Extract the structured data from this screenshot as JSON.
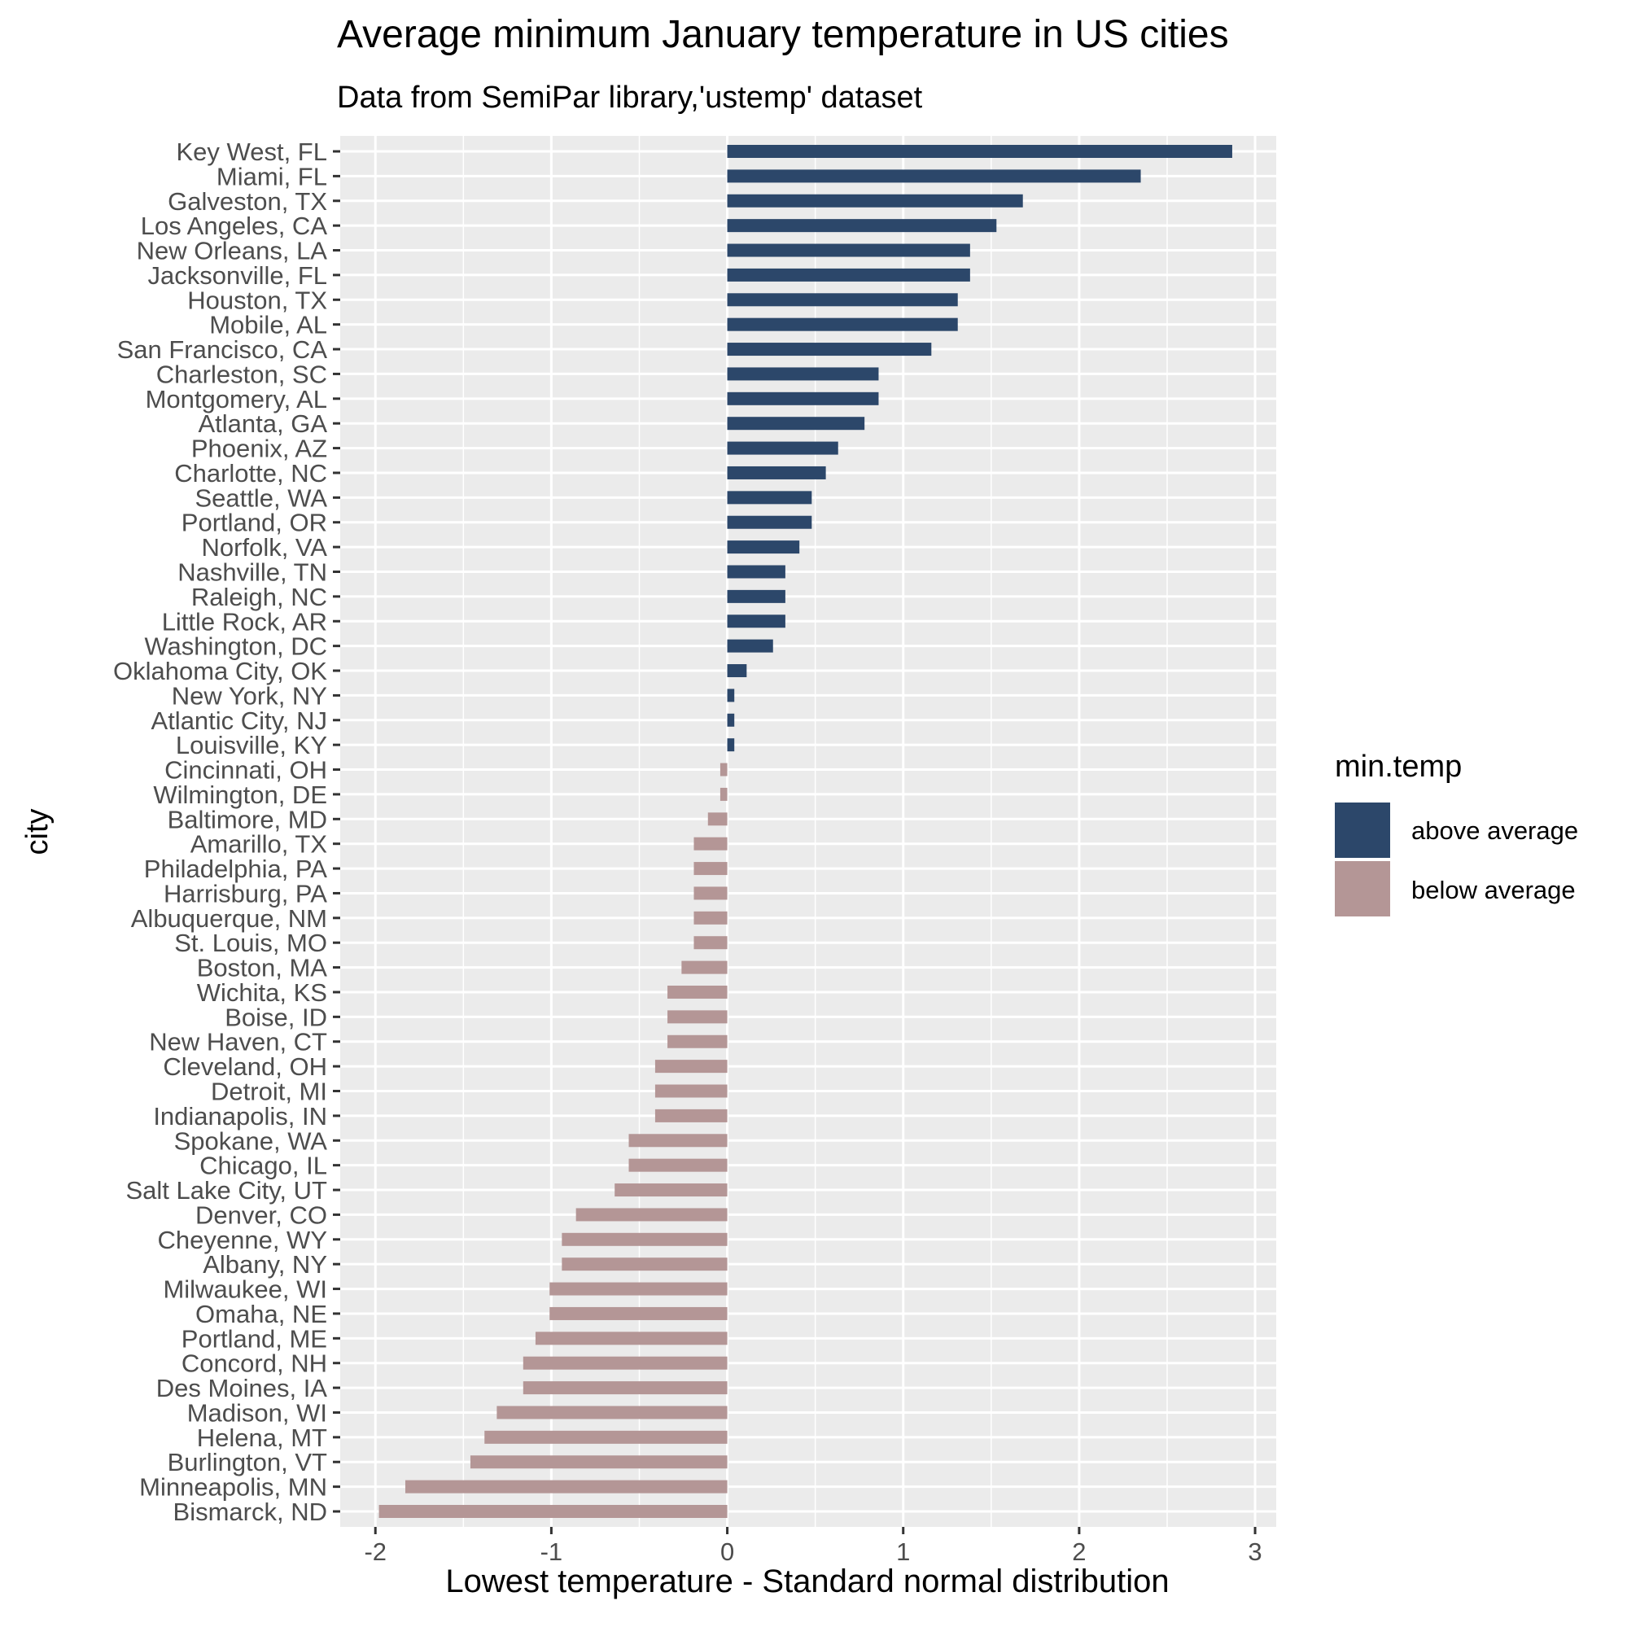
{
  "chart_data": {
    "type": "bar",
    "orientation": "horizontal",
    "title": "Average minimum January temperature in US cities",
    "subtitle": "Data from SemiPar library,'ustemp' dataset",
    "xlabel": "Lowest temperature - Standard normal distribution",
    "ylabel": "city",
    "xlim": [
      -2.2,
      3.12
    ],
    "x_ticks": [
      "-2",
      "-1",
      "0",
      "1",
      "2",
      "3"
    ],
    "grid": true,
    "legend": {
      "title": "min.temp",
      "position": "right",
      "entries": [
        {
          "label": "above average",
          "color": "#2c476a"
        },
        {
          "label": "below average",
          "color": "#b49696"
        }
      ]
    },
    "categories": [
      "Key West, FL",
      "Miami, FL",
      "Galveston, TX",
      "Los Angeles, CA",
      "New Orleans, LA",
      "Jacksonville, FL",
      "Houston, TX",
      "Mobile, AL",
      "San Francisco, CA",
      "Charleston, SC",
      "Montgomery, AL",
      "Atlanta, GA",
      "Phoenix, AZ",
      "Charlotte, NC",
      "Seattle, WA",
      "Portland, OR",
      "Norfolk, VA",
      "Nashville, TN",
      "Raleigh, NC",
      "Little Rock, AR",
      "Washington, DC",
      "Oklahoma City, OK",
      "New York, NY",
      "Atlantic City, NJ",
      "Louisville, KY",
      "Cincinnati, OH",
      "Wilmington, DE",
      "Baltimore, MD",
      "Amarillo, TX",
      "Philadelphia, PA",
      "Harrisburg, PA",
      "Albuquerque, NM",
      "St. Louis, MO",
      "Boston, MA",
      "Wichita, KS",
      "Boise, ID",
      "New Haven, CT",
      "Cleveland, OH",
      "Detroit, MI",
      "Indianapolis, IN",
      "Spokane, WA",
      "Chicago, IL",
      "Salt Lake City, UT",
      "Denver, CO",
      "Cheyenne, WY",
      "Albany, NY",
      "Milwaukee, WI",
      "Omaha, NE",
      "Portland, ME",
      "Concord, NH",
      "Des Moines, IA",
      "Madison, WI",
      "Helena, MT",
      "Burlington, VT",
      "Minneapolis, MN",
      "Bismarck, ND"
    ],
    "values": [
      2.87,
      2.35,
      1.68,
      1.53,
      1.38,
      1.38,
      1.31,
      1.31,
      1.16,
      0.86,
      0.86,
      0.78,
      0.63,
      0.56,
      0.48,
      0.48,
      0.41,
      0.33,
      0.33,
      0.33,
      0.26,
      0.11,
      0.04,
      0.04,
      0.04,
      -0.04,
      -0.04,
      -0.11,
      -0.19,
      -0.19,
      -0.19,
      -0.19,
      -0.19,
      -0.26,
      -0.34,
      -0.34,
      -0.34,
      -0.41,
      -0.41,
      -0.41,
      -0.56,
      -0.56,
      -0.64,
      -0.86,
      -0.94,
      -0.94,
      -1.01,
      -1.01,
      -1.09,
      -1.16,
      -1.16,
      -1.31,
      -1.38,
      -1.46,
      -1.83,
      -1.98
    ],
    "groups": [
      "above average",
      "above average",
      "above average",
      "above average",
      "above average",
      "above average",
      "above average",
      "above average",
      "above average",
      "above average",
      "above average",
      "above average",
      "above average",
      "above average",
      "above average",
      "above average",
      "above average",
      "above average",
      "above average",
      "above average",
      "above average",
      "above average",
      "above average",
      "above average",
      "above average",
      "below average",
      "below average",
      "below average",
      "below average",
      "below average",
      "below average",
      "below average",
      "below average",
      "below average",
      "below average",
      "below average",
      "below average",
      "below average",
      "below average",
      "below average",
      "below average",
      "below average",
      "below average",
      "below average",
      "below average",
      "below average",
      "below average",
      "below average",
      "below average",
      "below average",
      "below average",
      "below average",
      "below average",
      "below average",
      "below average",
      "below average"
    ]
  }
}
